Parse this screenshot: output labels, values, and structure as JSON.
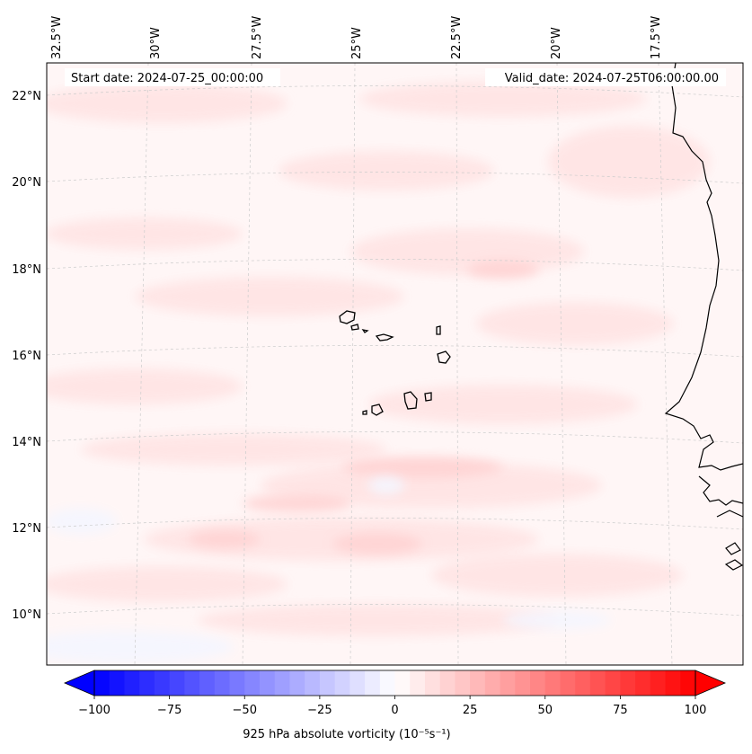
{
  "map": {
    "start_date": "Start date: 2024-07-25_00:00:00",
    "valid_date": "Valid_date: 2024-07-25T06:00:00.00",
    "lon_labels": [
      "32.5°W",
      "30°W",
      "27.5°W",
      "25°W",
      "22.5°W",
      "20°W",
      "17.5°W"
    ],
    "lat_labels": [
      "22°N",
      "20°N",
      "18°N",
      "16°N",
      "14°N",
      "12°N",
      "10°N"
    ],
    "field": "925 hPa absolute vorticity",
    "gridlines": true,
    "coastline_color": "#000000"
  },
  "colorbar": {
    "label": "925 hPa absolute vorticity",
    "units": "(10⁻⁵s⁻¹)",
    "ticks": [
      "−100",
      "−75",
      "−50",
      "−25",
      "0",
      "25",
      "50",
      "75",
      "100"
    ],
    "min": -100,
    "max": 100,
    "colormap": "bwr",
    "color_min": "#0000ff",
    "color_mid": "#ffffff",
    "color_max": "#ff0000",
    "extend": "both"
  }
}
